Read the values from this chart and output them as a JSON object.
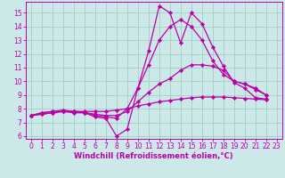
{
  "background_color": "#cce8e8",
  "grid_color": "#99ccbb",
  "line_color": "#bb00aa",
  "marker": "D",
  "markersize": 2.2,
  "linewidth": 0.9,
  "xlabel": "Windchill (Refroidissement éolien,°C)",
  "xlabel_fontsize": 6.0,
  "tick_fontsize": 5.5,
  "xlim": [
    -0.5,
    23.5
  ],
  "ylim": [
    5.8,
    15.8
  ],
  "yticks": [
    6,
    7,
    8,
    9,
    10,
    11,
    12,
    13,
    14,
    15
  ],
  "xticks": [
    0,
    1,
    2,
    3,
    4,
    5,
    6,
    7,
    8,
    9,
    10,
    11,
    12,
    13,
    14,
    15,
    16,
    17,
    18,
    19,
    20,
    21,
    22,
    23
  ],
  "series": [
    {
      "x": [
        0,
        1,
        2,
        3,
        4,
        5,
        6,
        7,
        8,
        9,
        10,
        11,
        12,
        13,
        14,
        15,
        16,
        17,
        18,
        19,
        20,
        21,
        22
      ],
      "y": [
        7.5,
        7.7,
        7.8,
        7.8,
        7.7,
        7.7,
        7.4,
        7.3,
        6.0,
        6.5,
        9.5,
        12.2,
        15.5,
        15.0,
        12.8,
        15.0,
        14.2,
        12.5,
        11.1,
        9.9,
        9.5,
        8.8,
        8.7
      ]
    },
    {
      "x": [
        0,
        1,
        2,
        3,
        4,
        5,
        6,
        7,
        8,
        9,
        10,
        11,
        12,
        13,
        14,
        15,
        16,
        17,
        18,
        19,
        20,
        21,
        22
      ],
      "y": [
        7.5,
        7.7,
        7.8,
        7.9,
        7.8,
        7.75,
        7.5,
        7.4,
        7.3,
        8.0,
        9.5,
        11.2,
        13.0,
        14.0,
        14.5,
        14.0,
        13.0,
        11.5,
        10.5,
        10.0,
        9.8,
        9.5,
        9.0
      ]
    },
    {
      "x": [
        0,
        1,
        2,
        3,
        4,
        5,
        6,
        7,
        8,
        9,
        10,
        11,
        12,
        13,
        14,
        15,
        16,
        17,
        18,
        19,
        20,
        21,
        22
      ],
      "y": [
        7.5,
        7.6,
        7.7,
        7.8,
        7.8,
        7.7,
        7.6,
        7.5,
        7.5,
        7.8,
        8.5,
        9.2,
        9.8,
        10.2,
        10.8,
        11.2,
        11.2,
        11.1,
        10.8,
        10.0,
        9.8,
        9.4,
        9.0
      ]
    },
    {
      "x": [
        0,
        1,
        2,
        3,
        4,
        5,
        6,
        7,
        8,
        9,
        10,
        11,
        12,
        13,
        14,
        15,
        16,
        17,
        18,
        19,
        20,
        21,
        22
      ],
      "y": [
        7.5,
        7.6,
        7.7,
        7.8,
        7.8,
        7.8,
        7.8,
        7.8,
        7.9,
        8.0,
        8.2,
        8.35,
        8.5,
        8.6,
        8.7,
        8.8,
        8.85,
        8.85,
        8.85,
        8.8,
        8.75,
        8.7,
        8.65
      ]
    }
  ]
}
